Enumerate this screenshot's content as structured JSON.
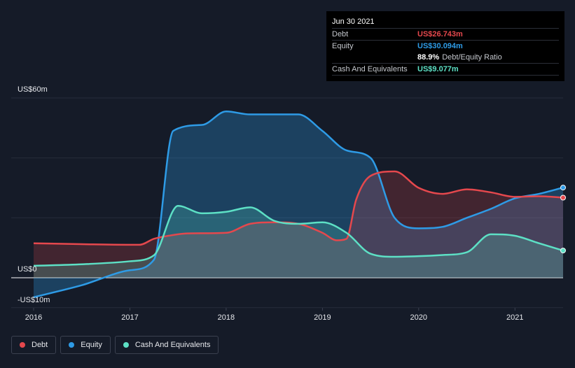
{
  "tooltip": {
    "date": "Jun 30 2021",
    "rows": [
      {
        "label": "Debt",
        "value": "US$26.743m",
        "color": "#e5484d"
      },
      {
        "label": "Equity",
        "value": "US$30.094m",
        "color": "#2e9be6"
      },
      {
        "label": "",
        "value": "88.9%",
        "extra": "Debt/Equity Ratio",
        "color": "#ffffff"
      },
      {
        "label": "Cash And Equivalents",
        "value": "US$9.077m",
        "color": "#5de0c5"
      }
    ]
  },
  "legend": [
    {
      "label": "Debt",
      "color": "#e5484d"
    },
    {
      "label": "Equity",
      "color": "#2e9be6"
    },
    {
      "label": "Cash And Equivalents",
      "color": "#5de0c5"
    }
  ],
  "chart_data": {
    "type": "area",
    "title": "",
    "xlabel": "",
    "ylabel": "",
    "y_labels": [
      "US$60m",
      "US$0",
      "-US$10m"
    ],
    "x_tick_labels": [
      "2016",
      "2017",
      "2018",
      "2019",
      "2020",
      "2021"
    ],
    "x_ticks": [
      2016,
      2017,
      2018,
      2019,
      2020,
      2021
    ],
    "xlim": [
      2016,
      2021.5
    ],
    "ylim": [
      -10,
      60
    ],
    "grid": true,
    "legend_position": "bottom-left",
    "series": [
      {
        "name": "Debt",
        "color": "#e5484d",
        "x": [
          2016.0,
          2016.5,
          2017.0,
          2017.1,
          2017.25,
          2017.4,
          2017.6,
          2018.0,
          2018.25,
          2018.5,
          2018.75,
          2019.0,
          2019.15,
          2019.25,
          2019.35,
          2019.5,
          2019.75,
          2020.0,
          2020.25,
          2020.5,
          2020.75,
          2021.0,
          2021.25,
          2021.5
        ],
        "y": [
          11.5,
          11.2,
          11.0,
          11.0,
          13.0,
          14.0,
          14.8,
          15.0,
          18.0,
          18.5,
          18.0,
          15.0,
          12.5,
          13.0,
          26.0,
          34.0,
          35.5,
          30.0,
          28.0,
          29.5,
          28.5,
          27.0,
          27.2,
          26.743
        ]
      },
      {
        "name": "Equity",
        "color": "#2e9be6",
        "x": [
          2016.0,
          2016.5,
          2017.0,
          2017.25,
          2017.45,
          2017.75,
          2018.0,
          2018.25,
          2018.5,
          2018.75,
          2019.0,
          2019.25,
          2019.5,
          2019.75,
          2020.0,
          2020.25,
          2020.5,
          2020.75,
          2021.0,
          2021.25,
          2021.5
        ],
        "y": [
          -6.5,
          -2.5,
          2.5,
          6.0,
          49.0,
          51.0,
          55.5,
          54.5,
          54.5,
          54.5,
          49.0,
          42.5,
          40.0,
          20.0,
          16.5,
          17.0,
          20.0,
          23.0,
          26.5,
          28.0,
          30.094
        ]
      },
      {
        "name": "Cash And Equivalents",
        "color": "#5de0c5",
        "x": [
          2016.0,
          2016.5,
          2017.0,
          2017.25,
          2017.5,
          2017.75,
          2018.0,
          2018.25,
          2018.5,
          2018.75,
          2019.0,
          2019.25,
          2019.5,
          2019.75,
          2020.0,
          2020.25,
          2020.5,
          2020.75,
          2021.0,
          2021.25,
          2021.5
        ],
        "y": [
          4.0,
          4.5,
          5.5,
          7.5,
          24.0,
          21.5,
          22.0,
          23.5,
          19.0,
          18.0,
          18.5,
          15.0,
          8.0,
          7.0,
          7.2,
          7.6,
          8.5,
          14.5,
          14.0,
          11.5,
          9.077
        ]
      }
    ]
  }
}
